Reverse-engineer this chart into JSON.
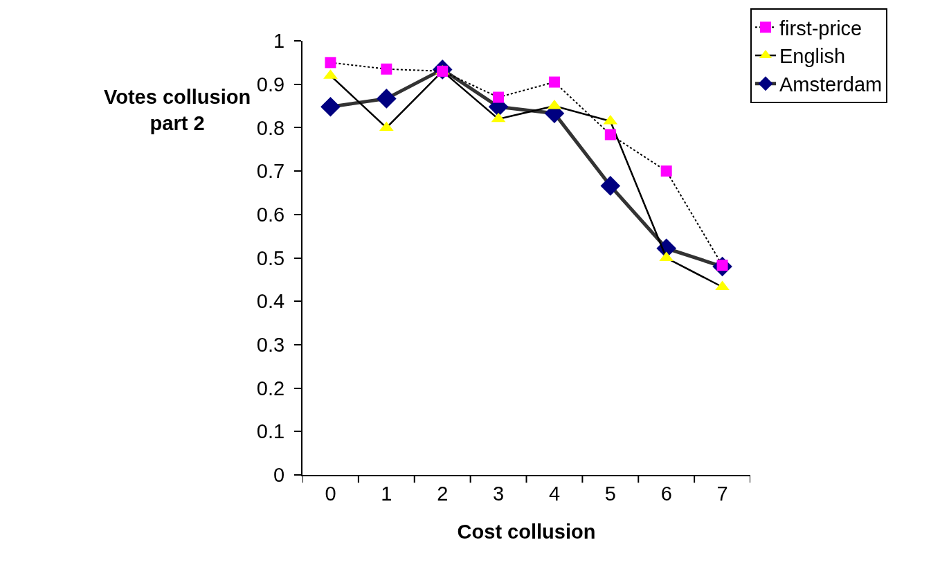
{
  "chart_data": {
    "type": "line",
    "xlabel": "Cost collusion",
    "ylabel": "Votes collusion\npart 2",
    "categories": [
      "0",
      "1",
      "2",
      "3",
      "4",
      "5",
      "6",
      "7"
    ],
    "series": [
      {
        "name": "first-price",
        "color": "#ff00ff",
        "marker": "square",
        "line_style": "dotted",
        "values": [
          0.95,
          0.935,
          0.93,
          0.87,
          0.905,
          0.784,
          0.7,
          0.483
        ]
      },
      {
        "name": "English",
        "color": "#ffff00",
        "marker": "triangle",
        "line_style": "solid",
        "values": [
          0.92,
          0.8,
          0.93,
          0.82,
          0.85,
          0.815,
          0.5,
          0.433
        ]
      },
      {
        "name": "Amsterdam",
        "color": "#000080",
        "marker": "diamond",
        "line_style": "solid",
        "values": [
          0.848,
          0.867,
          0.934,
          0.848,
          0.833,
          0.666,
          0.522,
          0.48
        ]
      }
    ],
    "ylim": [
      0,
      1
    ],
    "yticks": [
      0,
      0.1,
      0.2,
      0.3,
      0.4,
      0.5,
      0.6,
      0.7,
      0.8,
      0.9,
      1
    ],
    "legend": "top right"
  }
}
